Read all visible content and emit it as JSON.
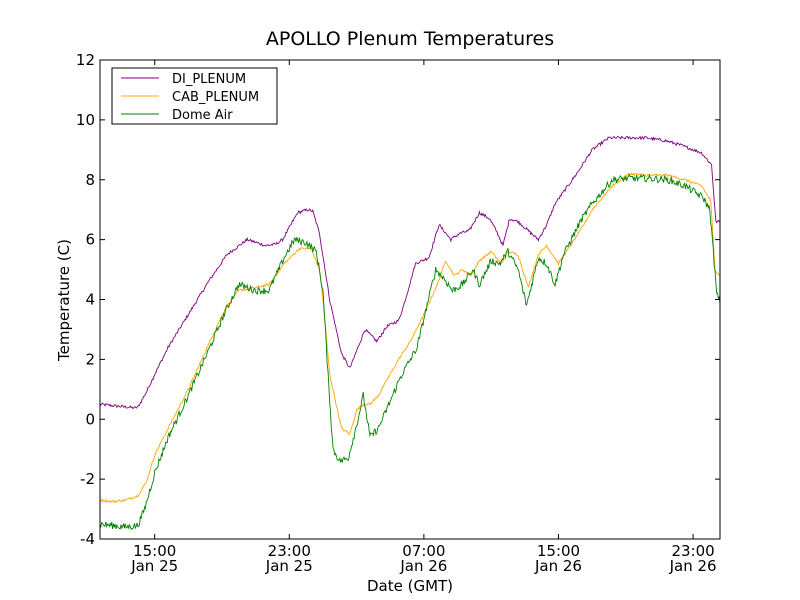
{
  "chart_data": {
    "type": "line",
    "title": "APOLLO Plenum Temperatures",
    "xlabel": "Date (GMT)",
    "ylabel": "Temperature (C)",
    "ylim": [
      -4,
      12
    ],
    "yticks": [
      -4,
      -2,
      0,
      2,
      4,
      6,
      8,
      10,
      12
    ],
    "yticklabels": [
      "-4",
      "-2",
      "0",
      "2",
      "4",
      "6",
      "8",
      "10",
      "12"
    ],
    "xlim_hours": [
      11.75,
      48.6
    ],
    "xticks": [
      {
        "hours": 15,
        "time": "15:00",
        "date": "Jan 25"
      },
      {
        "hours": 23,
        "time": "23:00",
        "date": "Jan 25"
      },
      {
        "hours": 31,
        "time": "07:00",
        "date": "Jan 26"
      },
      {
        "hours": 39,
        "time": "15:00",
        "date": "Jan 26"
      },
      {
        "hours": 47,
        "time": "23:00",
        "date": "Jan 26"
      }
    ],
    "x_units": "hours since Jan 25 00:00 GMT",
    "legend_position": "upper-left",
    "grid": false,
    "series": [
      {
        "name": "DI_PLENUM",
        "color": "#800080",
        "noise": 0.05,
        "x": [
          11.75,
          12.6,
          13.8,
          14.0,
          14.5,
          15.0,
          15.8,
          17.0,
          18.2,
          19.3,
          20.5,
          21.6,
          22.2,
          22.6,
          23.5,
          24.1,
          24.4,
          24.8,
          25.4,
          26.1,
          26.6,
          27.5,
          28.2,
          28.8,
          29.5,
          29.8,
          30.5,
          31.3,
          31.9,
          32.6,
          33.1,
          33.7,
          34.3,
          34.9,
          35.3,
          35.7,
          36.1,
          36.6,
          37.2,
          37.8,
          38.3,
          38.8,
          40.2,
          41.0,
          42.0,
          43.0,
          44.2,
          45.4,
          46.3,
          47.5,
          48.1,
          48.35,
          48.6
        ],
        "y": [
          0.5,
          0.45,
          0.38,
          0.4,
          0.9,
          1.5,
          2.4,
          3.5,
          4.6,
          5.5,
          6.0,
          5.8,
          5.85,
          6.0,
          6.9,
          7.0,
          6.95,
          6.2,
          4.0,
          2.2,
          1.7,
          3.0,
          2.6,
          3.1,
          3.3,
          3.8,
          5.2,
          5.4,
          6.5,
          6.0,
          6.2,
          6.3,
          6.9,
          6.7,
          6.3,
          5.8,
          6.7,
          6.6,
          6.3,
          6.0,
          6.5,
          7.2,
          8.3,
          9.0,
          9.4,
          9.4,
          9.4,
          9.3,
          9.15,
          8.9,
          8.5,
          6.6,
          6.6
        ]
      },
      {
        "name": "CAB_PLENUM",
        "color": "#ffa500",
        "noise": 0.04,
        "x": [
          11.75,
          12.5,
          13.3,
          14.0,
          14.5,
          15.0,
          15.8,
          17.0,
          18.2,
          19.2,
          20.0,
          21.0,
          21.8,
          22.7,
          23.6,
          24.3,
          24.8,
          25.0,
          25.4,
          26.1,
          26.6,
          27.0,
          27.4,
          27.8,
          28.3,
          29.0,
          29.5,
          30.2,
          31.0,
          31.8,
          32.3,
          32.8,
          33.3,
          33.8,
          34.3,
          35.0,
          35.6,
          36.0,
          36.6,
          37.2,
          37.8,
          38.3,
          39.0,
          40.3,
          41.0,
          42.2,
          43.2,
          44.2,
          45.5,
          46.5,
          47.5,
          48.05,
          48.3,
          48.6
        ],
        "y": [
          -2.7,
          -2.75,
          -2.7,
          -2.55,
          -2.1,
          -1.2,
          -0.3,
          1.0,
          2.5,
          3.7,
          4.3,
          4.4,
          4.5,
          5.2,
          5.7,
          5.7,
          5.0,
          4.0,
          1.5,
          -0.3,
          -0.5,
          0.3,
          0.5,
          0.5,
          0.8,
          1.5,
          2.0,
          2.6,
          3.5,
          4.5,
          5.3,
          4.8,
          5.0,
          4.8,
          5.3,
          5.6,
          5.2,
          5.6,
          5.5,
          4.4,
          5.5,
          5.8,
          5.2,
          6.3,
          7.0,
          7.8,
          8.2,
          8.15,
          8.15,
          8.0,
          7.8,
          7.3,
          5.0,
          4.8
        ]
      },
      {
        "name": "Dome Air",
        "color": "#008000",
        "noise": 0.12,
        "x": [
          11.75,
          12.5,
          13.3,
          14.0,
          14.4,
          15.0,
          15.8,
          17.0,
          18.2,
          19.2,
          20.0,
          21.0,
          21.8,
          22.7,
          23.3,
          24.0,
          24.6,
          25.0,
          25.3,
          25.6,
          26.0,
          26.5,
          27.0,
          27.4,
          27.8,
          28.3,
          29.0,
          29.6,
          30.2,
          30.6,
          31.1,
          31.7,
          32.2,
          32.7,
          33.3,
          33.9,
          34.3,
          35.0,
          35.5,
          36.0,
          36.6,
          37.1,
          37.8,
          38.3,
          38.8,
          39.3,
          40.3,
          41.0,
          42.2,
          43.2,
          44.2,
          45.5,
          46.5,
          47.6,
          48.0,
          48.2,
          48.4,
          48.6
        ],
        "y": [
          -3.5,
          -3.55,
          -3.6,
          -3.55,
          -3.0,
          -1.8,
          -0.6,
          0.8,
          2.3,
          3.6,
          4.5,
          4.3,
          4.3,
          5.4,
          6.0,
          5.9,
          5.6,
          4.3,
          1.5,
          -1.0,
          -1.4,
          -1.3,
          -0.2,
          0.8,
          -0.6,
          -0.3,
          0.6,
          1.4,
          2.0,
          2.4,
          3.6,
          5.0,
          4.7,
          4.3,
          4.5,
          5.0,
          4.5,
          5.3,
          5.2,
          5.6,
          5.0,
          3.8,
          5.4,
          5.2,
          4.5,
          5.5,
          6.6,
          7.2,
          8.0,
          8.05,
          8.05,
          8.0,
          7.8,
          7.4,
          7.0,
          5.6,
          4.2,
          3.9
        ]
      }
    ]
  }
}
